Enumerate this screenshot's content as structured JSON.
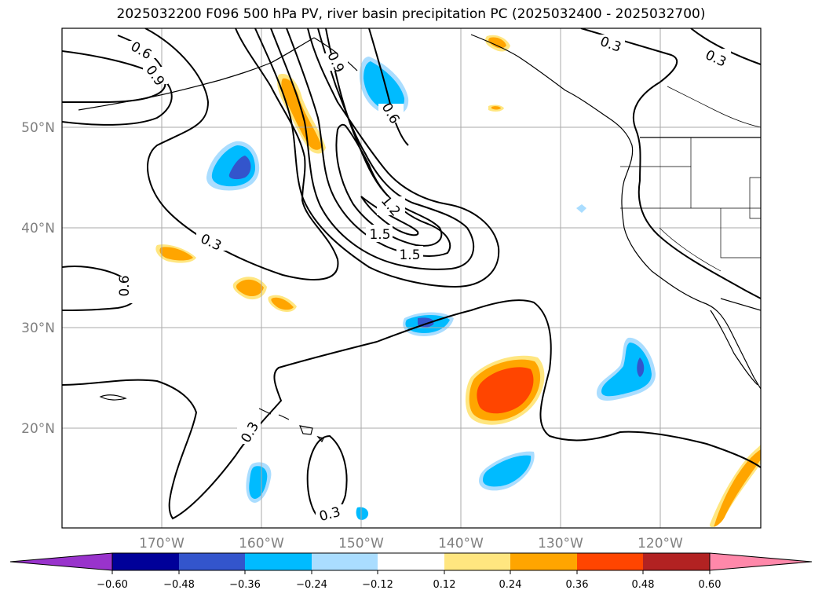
{
  "title": "2025032200 F096 500 hPa PV, river basin precipitation PC (2025032400 - 2025032700)",
  "lat_labels": [
    "50°N",
    "40°N",
    "30°N",
    "20°N"
  ],
  "lon_labels": [
    "170°W",
    "160°W",
    "150°W",
    "140°W",
    "130°W",
    "120°W"
  ],
  "contour_labels": [
    "0.6",
    "0.9",
    "0.9",
    "0.6",
    "0.3",
    "0.3",
    "0.3",
    "0.6",
    "1.2",
    "1.5",
    "1.5",
    "0.3",
    "0.3"
  ],
  "colorbar": {
    "ticks": [
      "−0.60",
      "−0.48",
      "−0.36",
      "−0.24",
      "−0.12",
      "0.12",
      "0.24",
      "0.36",
      "0.48",
      "0.60"
    ],
    "colors": [
      "#9933cc",
      "#000099",
      "#3355cc",
      "#00bbff",
      "#aaddff",
      "#ffffff",
      "#ffe680",
      "#ffa500",
      "#ff4500",
      "#b22222",
      "#ff88aa"
    ]
  },
  "colors": {
    "contour": "#000000",
    "grid": "#aaaaaa",
    "axis_label": "#808080"
  }
}
